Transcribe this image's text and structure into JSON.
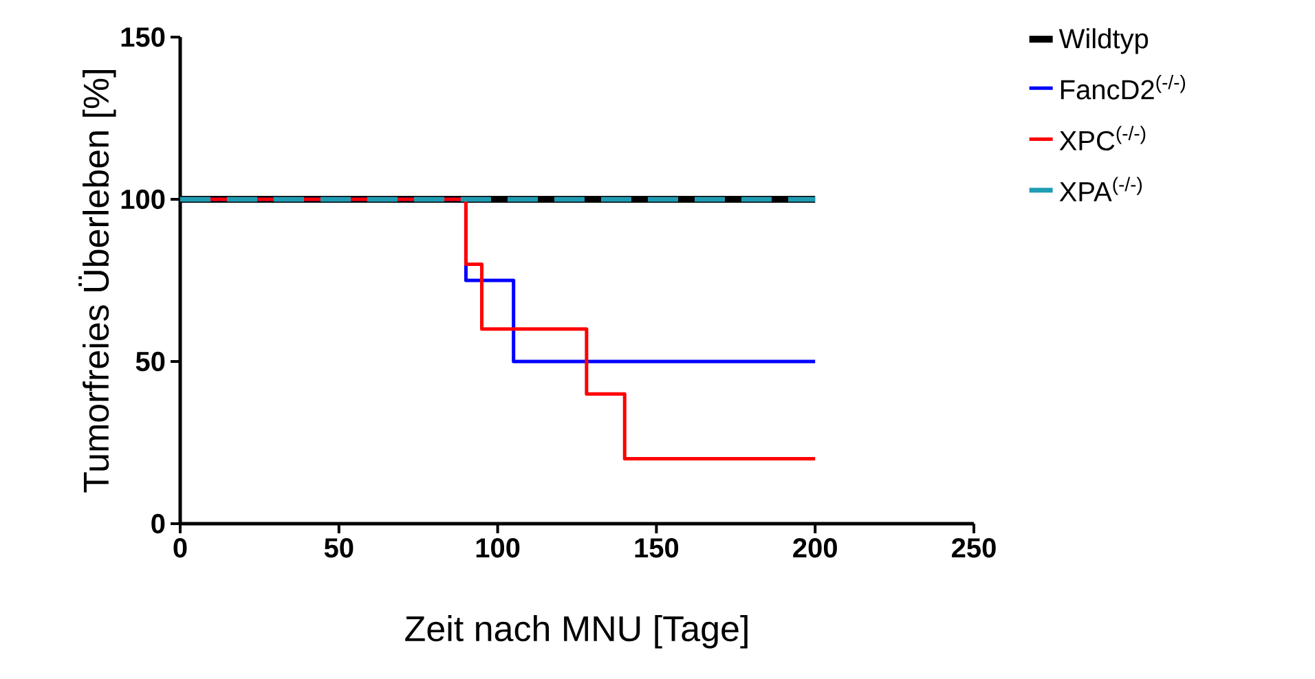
{
  "chart_data": {
    "type": "step",
    "xlabel": "Zeit nach MNU [Tage]",
    "ylabel": "Tumorfreies Überleben [%]",
    "xlim": [
      0,
      250
    ],
    "ylim": [
      0,
      150
    ],
    "xticks": [
      0,
      50,
      100,
      150,
      200,
      250
    ],
    "yticks": [
      0,
      50,
      100,
      150
    ],
    "grid": false,
    "legend": "right",
    "marker": "none",
    "series": [
      {
        "name": "Wildtyp",
        "color": "#000000",
        "x": [
          0,
          200
        ],
        "values": [
          100,
          100
        ],
        "line_style": "solid"
      },
      {
        "name": "FancD2$^{(-/-)}$",
        "color": "#0000ff",
        "x": [
          0,
          90,
          105,
          200
        ],
        "values": [
          100,
          75,
          50,
          50
        ],
        "line_style": "solid"
      },
      {
        "name": "XPC$^{(-/-)}$",
        "color": "#ff0000",
        "x": [
          0,
          90,
          95,
          128,
          140,
          200
        ],
        "values": [
          100,
          80,
          60,
          40,
          20,
          20
        ],
        "line_style": "solid"
      },
      {
        "name": "XPA$^{(-/-)}$",
        "color": "#1f9cb4",
        "x": [
          0,
          200
        ],
        "values": [
          100,
          100
        ],
        "line_style": "dashed"
      }
    ]
  }
}
